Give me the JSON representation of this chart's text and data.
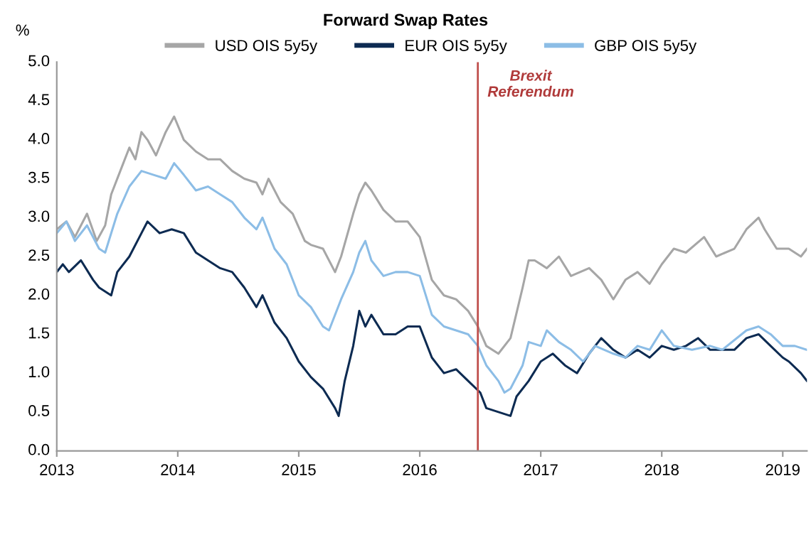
{
  "chart_data": {
    "type": "line",
    "title": "Forward Swap Rates",
    "ylabel": "%",
    "xlim": [
      2013,
      2019.2
    ],
    "xticks": [
      2013,
      2014,
      2015,
      2016,
      2017,
      2018,
      2019
    ],
    "ylim": [
      0,
      5
    ],
    "yticks": [
      {
        "value": 0,
        "label": "0.0"
      },
      {
        "value": 0.5,
        "label": "0.5"
      },
      {
        "value": 1,
        "label": "1.0"
      },
      {
        "value": 1.5,
        "label": "1.5"
      },
      {
        "value": 2,
        "label": "2.0"
      },
      {
        "value": 2.5,
        "label": "2.5"
      },
      {
        "value": 3,
        "label": "3.0"
      },
      {
        "value": 3.5,
        "label": "3.5"
      },
      {
        "value": 4,
        "label": "4.0"
      },
      {
        "value": 4.5,
        "label": "4.5"
      },
      {
        "value": 5,
        "label": "5.0"
      }
    ],
    "grid": false,
    "legend": "top",
    "marker": "none",
    "line_style": "solid",
    "ref_lines": [
      {
        "axis": "x",
        "value": 2016.48,
        "label": "Brexit\nReferendum",
        "color": "#c0504d"
      }
    ],
    "series": [
      {
        "name": "USD OIS 5y5y",
        "color": "#a6a6a6",
        "x": [
          2013.0,
          2013.08,
          2013.15,
          2013.25,
          2013.33,
          2013.4,
          2013.45,
          2013.55,
          2013.6,
          2013.65,
          2013.7,
          2013.75,
          2013.82,
          2013.9,
          2013.97,
          2014.05,
          2014.15,
          2014.25,
          2014.35,
          2014.45,
          2014.55,
          2014.65,
          2014.7,
          2014.75,
          2014.85,
          2014.95,
          2015.05,
          2015.1,
          2015.2,
          2015.3,
          2015.35,
          2015.45,
          2015.5,
          2015.55,
          2015.6,
          2015.7,
          2015.8,
          2015.9,
          2016.0,
          2016.1,
          2016.2,
          2016.3,
          2016.4,
          2016.48,
          2016.55,
          2016.65,
          2016.75,
          2016.85,
          2016.9,
          2016.95,
          2017.05,
          2017.15,
          2017.25,
          2017.4,
          2017.5,
          2017.6,
          2017.7,
          2017.8,
          2017.9,
          2018.0,
          2018.1,
          2018.2,
          2018.35,
          2018.45,
          2018.6,
          2018.7,
          2018.8,
          2018.85,
          2018.95,
          2019.05,
          2019.15,
          2019.2
        ],
        "values": [
          2.85,
          2.95,
          2.75,
          3.05,
          2.7,
          2.9,
          3.3,
          3.7,
          3.9,
          3.75,
          4.1,
          4.0,
          3.8,
          4.1,
          4.3,
          4.0,
          3.85,
          3.75,
          3.75,
          3.6,
          3.5,
          3.45,
          3.3,
          3.5,
          3.2,
          3.05,
          2.7,
          2.65,
          2.6,
          2.3,
          2.5,
          3.05,
          3.3,
          3.45,
          3.35,
          3.1,
          2.95,
          2.95,
          2.75,
          2.2,
          2.0,
          1.95,
          1.8,
          1.6,
          1.35,
          1.25,
          1.45,
          2.1,
          2.45,
          2.45,
          2.35,
          2.5,
          2.25,
          2.35,
          2.2,
          1.95,
          2.2,
          2.3,
          2.15,
          2.4,
          2.6,
          2.55,
          2.75,
          2.5,
          2.6,
          2.85,
          3.0,
          2.85,
          2.6,
          2.6,
          2.5,
          2.6
        ]
      },
      {
        "name": "EUR OIS 5y5y",
        "color": "#0d2b52",
        "x": [
          2013.0,
          2013.05,
          2013.1,
          2013.2,
          2013.3,
          2013.35,
          2013.45,
          2013.5,
          2013.6,
          2013.7,
          2013.75,
          2013.85,
          2013.95,
          2014.05,
          2014.15,
          2014.25,
          2014.35,
          2014.45,
          2014.55,
          2014.65,
          2014.7,
          2014.8,
          2014.9,
          2015.0,
          2015.1,
          2015.2,
          2015.3,
          2015.33,
          2015.38,
          2015.45,
          2015.5,
          2015.55,
          2015.6,
          2015.7,
          2015.8,
          2015.9,
          2016.0,
          2016.1,
          2016.2,
          2016.3,
          2016.4,
          2016.5,
          2016.55,
          2016.65,
          2016.75,
          2016.8,
          2016.9,
          2017.0,
          2017.1,
          2017.2,
          2017.3,
          2017.4,
          2017.5,
          2017.6,
          2017.7,
          2017.8,
          2017.9,
          2018.0,
          2018.1,
          2018.2,
          2018.3,
          2018.4,
          2018.5,
          2018.6,
          2018.7,
          2018.8,
          2018.9,
          2019.0,
          2019.05,
          2019.15,
          2019.2
        ],
        "values": [
          2.3,
          2.4,
          2.3,
          2.45,
          2.2,
          2.1,
          2.0,
          2.3,
          2.5,
          2.8,
          2.95,
          2.8,
          2.85,
          2.8,
          2.55,
          2.45,
          2.35,
          2.3,
          2.1,
          1.85,
          2.0,
          1.65,
          1.45,
          1.15,
          0.95,
          0.8,
          0.55,
          0.45,
          0.9,
          1.35,
          1.8,
          1.6,
          1.75,
          1.5,
          1.5,
          1.6,
          1.6,
          1.2,
          1.0,
          1.05,
          0.9,
          0.75,
          0.55,
          0.5,
          0.45,
          0.7,
          0.9,
          1.15,
          1.25,
          1.1,
          1.0,
          1.25,
          1.45,
          1.3,
          1.2,
          1.3,
          1.2,
          1.35,
          1.3,
          1.35,
          1.45,
          1.3,
          1.3,
          1.3,
          1.45,
          1.5,
          1.35,
          1.2,
          1.15,
          1.0,
          0.9
        ]
      },
      {
        "name": "GBP OIS 5y5y",
        "color": "#8cbde6",
        "x": [
          2013.0,
          2013.08,
          2013.15,
          2013.25,
          2013.35,
          2013.4,
          2013.5,
          2013.6,
          2013.7,
          2013.8,
          2013.9,
          2013.97,
          2014.05,
          2014.15,
          2014.25,
          2014.35,
          2014.45,
          2014.55,
          2014.65,
          2014.7,
          2014.8,
          2014.9,
          2015.0,
          2015.1,
          2015.2,
          2015.25,
          2015.35,
          2015.45,
          2015.5,
          2015.55,
          2015.6,
          2015.7,
          2015.8,
          2015.9,
          2016.0,
          2016.1,
          2016.2,
          2016.3,
          2016.4,
          2016.48,
          2016.55,
          2016.65,
          2016.7,
          2016.75,
          2016.85,
          2016.9,
          2017.0,
          2017.05,
          2017.15,
          2017.25,
          2017.35,
          2017.45,
          2017.6,
          2017.7,
          2017.8,
          2017.9,
          2018.0,
          2018.1,
          2018.25,
          2018.4,
          2018.5,
          2018.7,
          2018.8,
          2018.9,
          2019.0,
          2019.1,
          2019.2
        ],
        "values": [
          2.8,
          2.95,
          2.7,
          2.9,
          2.6,
          2.55,
          3.05,
          3.4,
          3.6,
          3.55,
          3.5,
          3.7,
          3.55,
          3.35,
          3.4,
          3.3,
          3.2,
          3.0,
          2.85,
          3.0,
          2.6,
          2.4,
          2.0,
          1.85,
          1.6,
          1.55,
          1.95,
          2.3,
          2.55,
          2.7,
          2.45,
          2.25,
          2.3,
          2.3,
          2.25,
          1.75,
          1.6,
          1.55,
          1.5,
          1.35,
          1.1,
          0.9,
          0.75,
          0.8,
          1.1,
          1.4,
          1.35,
          1.55,
          1.4,
          1.3,
          1.15,
          1.35,
          1.25,
          1.2,
          1.35,
          1.3,
          1.55,
          1.35,
          1.3,
          1.35,
          1.3,
          1.55,
          1.6,
          1.5,
          1.35,
          1.35,
          1.3
        ]
      }
    ]
  }
}
